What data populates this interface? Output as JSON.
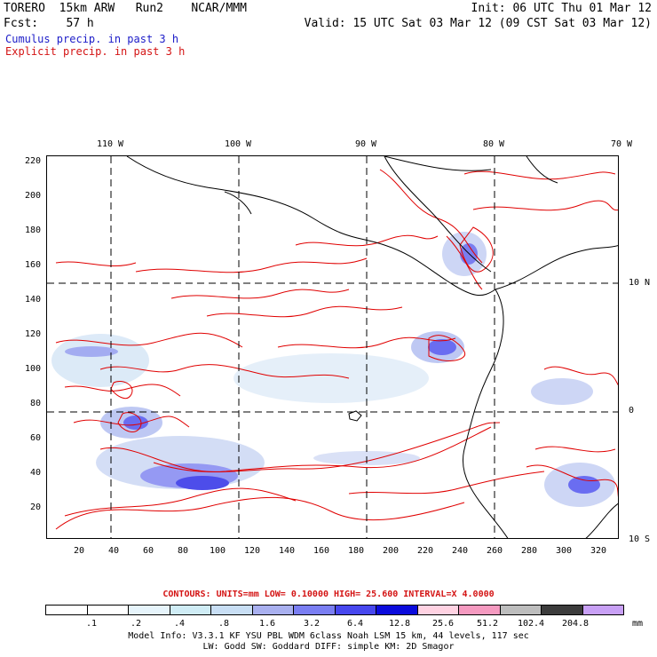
{
  "header": {
    "line1_left": "TORERO  15km ARW   Run2    NCAR/MMM",
    "line1_right": "Init: 06 UTC Thu 01 Mar 12",
    "line2_left": "Fcst:    57 h",
    "line2_right": "Valid: 15 UTC Sat 03 Mar 12 (09 CST Sat 03 Mar 12)",
    "cumulus": "Cumulus precip. in past 3 h",
    "explicit": "Explicit precip. in past 3 h"
  },
  "map": {
    "lon_labels": [
      "110 W",
      "100 W",
      "90 W",
      "80 W",
      "70 W"
    ],
    "lat_right_labels": [
      "10 N",
      "0",
      "10 S"
    ],
    "y_ticks": [
      "220",
      "200",
      "180",
      "160",
      "140",
      "120",
      "100",
      "80",
      "60",
      "40",
      "20"
    ],
    "x_ticks": [
      "20",
      "40",
      "60",
      "80",
      "100",
      "120",
      "140",
      "160",
      "180",
      "200",
      "220",
      "240",
      "260",
      "280",
      "300",
      "320"
    ],
    "colors": {
      "coast": "#000000",
      "contour": "#e00000",
      "grid": "#000000"
    }
  },
  "contours": {
    "text": "CONTOURS:  UNITS=mm  LOW= 0.10000      HIGH=  25.600     INTERVAL=X  4.0000"
  },
  "colorbar": {
    "labels": [
      ".1",
      ".2",
      ".4",
      ".8",
      "1.6",
      "3.2",
      "6.4",
      "12.8",
      "25.6",
      "51.2",
      "102.4",
      "204.8"
    ],
    "colors": [
      "#ffffff",
      "#ffffff",
      "#e6f4fb",
      "#cfecf5",
      "#c8def4",
      "#a9b0ef",
      "#7a7ef2",
      "#4747ee",
      "#0b0bdc",
      "#ffd2e2",
      "#f59ac0",
      "#bdbdbd",
      "#3c3c3c",
      "#c8a0f5"
    ],
    "unit": "mm"
  },
  "footer": {
    "line1": "Model Info: V3.3.1    KF      YSU PBL   WDM 6class  Noah LSM  15 km,    44 levels,   117 sec",
    "line2": "LW: Godd SW: Goddard DIFF: simple KM: 2D Smagor"
  }
}
